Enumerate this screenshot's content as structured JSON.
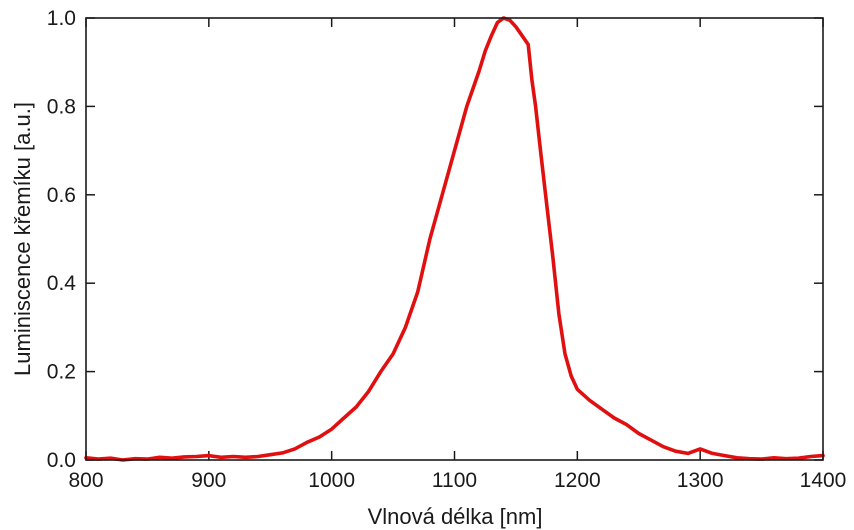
{
  "chart_data": {
    "type": "line",
    "title": "",
    "xlabel": "Vlnová délka [nm]",
    "ylabel": "Luminiscence křemíku [a.u.]",
    "xlim": [
      800,
      1400
    ],
    "ylim": [
      0,
      1
    ],
    "xticks": [
      800,
      900,
      1000,
      1100,
      1200,
      1300,
      1400
    ],
    "yticks": [
      0.0,
      0.2,
      0.4,
      0.6,
      0.8,
      1.0
    ],
    "xtick_labels": [
      "800",
      "900",
      "1000",
      "1100",
      "1200",
      "1300",
      "1400"
    ],
    "ytick_labels": [
      "0.0",
      "0.2",
      "0.4",
      "0.6",
      "0.8",
      "1.0"
    ],
    "grid": false,
    "series": [
      {
        "color": "#e01010",
        "x": [
          800,
          810,
          820,
          830,
          840,
          850,
          860,
          870,
          880,
          890,
          900,
          910,
          920,
          930,
          940,
          950,
          960,
          970,
          980,
          990,
          1000,
          1010,
          1020,
          1030,
          1040,
          1050,
          1060,
          1070,
          1080,
          1090,
          1100,
          1110,
          1120,
          1125,
          1130,
          1135,
          1140,
          1145,
          1150,
          1155,
          1160,
          1163,
          1166,
          1170,
          1175,
          1180,
          1185,
          1190,
          1195,
          1200,
          1210,
          1220,
          1230,
          1240,
          1250,
          1260,
          1270,
          1280,
          1290,
          1300,
          1310,
          1320,
          1330,
          1340,
          1350,
          1360,
          1370,
          1380,
          1390,
          1400
        ],
        "y": [
          0.005,
          0.002,
          0.004,
          0.0,
          0.003,
          0.002,
          0.006,
          0.004,
          0.007,
          0.008,
          0.01,
          0.006,
          0.008,
          0.006,
          0.008,
          0.012,
          0.016,
          0.025,
          0.04,
          0.052,
          0.07,
          0.095,
          0.12,
          0.155,
          0.2,
          0.24,
          0.3,
          0.38,
          0.5,
          0.6,
          0.7,
          0.8,
          0.88,
          0.925,
          0.96,
          0.99,
          1.0,
          0.995,
          0.98,
          0.96,
          0.94,
          0.86,
          0.8,
          0.7,
          0.58,
          0.46,
          0.33,
          0.24,
          0.19,
          0.16,
          0.135,
          0.115,
          0.095,
          0.08,
          0.06,
          0.045,
          0.03,
          0.02,
          0.015,
          0.025,
          0.015,
          0.01,
          0.005,
          0.003,
          0.002,
          0.005,
          0.003,
          0.004,
          0.008,
          0.01
        ]
      }
    ]
  }
}
